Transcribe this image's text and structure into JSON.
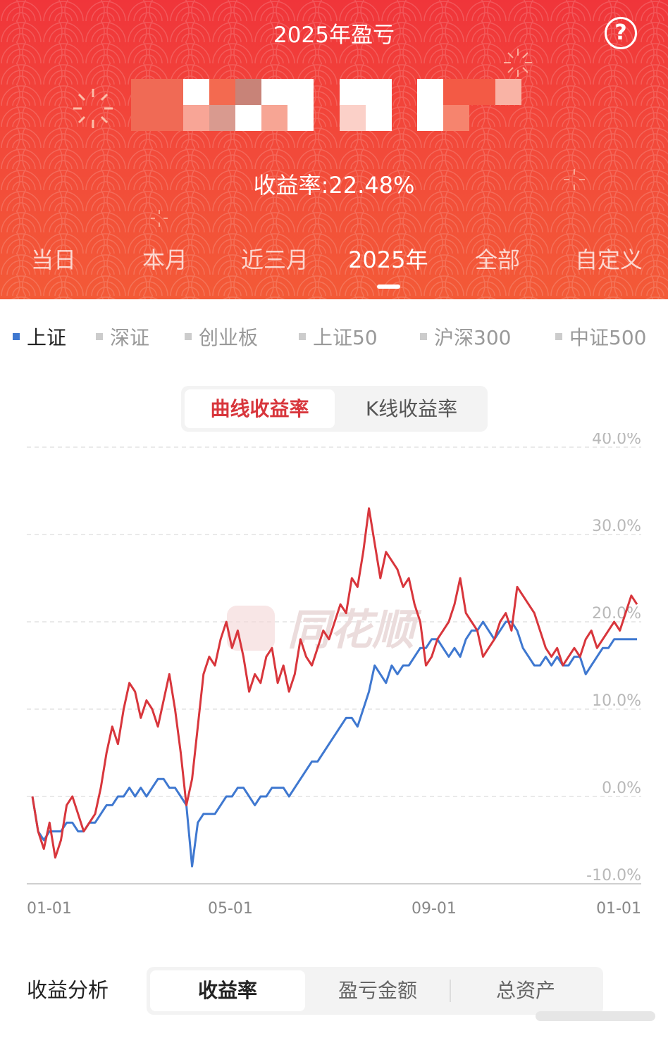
{
  "header": {
    "title": "2025年盈亏",
    "help_icon": "question-circle-icon",
    "return_label": "收益率:22.48%",
    "tabs": [
      {
        "label": "当日"
      },
      {
        "label": "本月"
      },
      {
        "label": "近三月"
      },
      {
        "label": "2025年",
        "active": true
      },
      {
        "label": "全部"
      },
      {
        "label": "自定义"
      }
    ]
  },
  "indices": [
    {
      "label": "上证",
      "active": true
    },
    {
      "label": "深证"
    },
    {
      "label": "创业板"
    },
    {
      "label": "上证50"
    },
    {
      "label": "沪深300"
    },
    {
      "label": "中证500"
    }
  ],
  "chart_toggle": {
    "curve": "曲线收益率",
    "kline": "K线收益率"
  },
  "colors": {
    "header_red": "#f0353a",
    "account_line": "#d8363c",
    "index_line": "#3f78d0",
    "active_toggle_text": "#d8363c"
  },
  "chart_data": {
    "type": "line",
    "ylim": [
      -10,
      40
    ],
    "y_ticks": [
      "40.0%",
      "30.0%",
      "20.0%",
      "10.0%",
      "0.0%",
      "-10.0%"
    ],
    "x_ticks": [
      "01-01",
      "05-01",
      "09-01",
      "01-01"
    ],
    "watermark": "同花顺",
    "series": [
      {
        "color": "#d8363c",
        "x": [
          0,
          1,
          2,
          3,
          4,
          5,
          6,
          7,
          8,
          9,
          10,
          11,
          12,
          13,
          14,
          15,
          16,
          17,
          18,
          19,
          20,
          21,
          22,
          23,
          24,
          25,
          26,
          27,
          28,
          29,
          30,
          31,
          32,
          33,
          34,
          35,
          36,
          37,
          38,
          39,
          40,
          41,
          42,
          43,
          44,
          45,
          46,
          47,
          48,
          49,
          50,
          51,
          52,
          53,
          54,
          55,
          56,
          57,
          58,
          59,
          60,
          61,
          62,
          63,
          64,
          65,
          66,
          67,
          68,
          69,
          70,
          71,
          72,
          73,
          74,
          75,
          76,
          77,
          78,
          79,
          80,
          81,
          82,
          83,
          84,
          85,
          86,
          87,
          88,
          89,
          90,
          91,
          92,
          93,
          94,
          95,
          96,
          97,
          98,
          99,
          100,
          101,
          102,
          103,
          104,
          105,
          106
        ],
        "values": [
          0,
          -4,
          -6,
          -3,
          -7,
          -5,
          -1,
          0,
          -2,
          -4,
          -3,
          -2,
          1,
          5,
          8,
          6,
          10,
          13,
          12,
          9,
          11,
          10,
          8,
          11,
          14,
          10,
          5,
          -1,
          2,
          8,
          14,
          16,
          15,
          18,
          20,
          17,
          19,
          16,
          12,
          14,
          13,
          16,
          17,
          13,
          15,
          12,
          14,
          18,
          16,
          15,
          17,
          19,
          18,
          20,
          22,
          21,
          25,
          24,
          28,
          33,
          29,
          25,
          28,
          27,
          26,
          24,
          25,
          22,
          20,
          15,
          16,
          18,
          19,
          20,
          22,
          25,
          21,
          20,
          19,
          16,
          17,
          18,
          20,
          21,
          19,
          24,
          23,
          22,
          21,
          19,
          17,
          16,
          17,
          15,
          16,
          17,
          16,
          18,
          19,
          17,
          18,
          19,
          20,
          19,
          21,
          23,
          22
        ]
      },
      {
        "color": "#3f78d0",
        "x": [
          0,
          1,
          2,
          3,
          4,
          5,
          6,
          7,
          8,
          9,
          10,
          11,
          12,
          13,
          14,
          15,
          16,
          17,
          18,
          19,
          20,
          21,
          22,
          23,
          24,
          25,
          26,
          27,
          28,
          29,
          30,
          31,
          32,
          33,
          34,
          35,
          36,
          37,
          38,
          39,
          40,
          41,
          42,
          43,
          44,
          45,
          46,
          47,
          48,
          49,
          50,
          51,
          52,
          53,
          54,
          55,
          56,
          57,
          58,
          59,
          60,
          61,
          62,
          63,
          64,
          65,
          66,
          67,
          68,
          69,
          70,
          71,
          72,
          73,
          74,
          75,
          76,
          77,
          78,
          79,
          80,
          81,
          82,
          83,
          84,
          85,
          86,
          87,
          88,
          89,
          90,
          91,
          92,
          93,
          94,
          95,
          96,
          97,
          98,
          99,
          100,
          101,
          102,
          103,
          104,
          105,
          106
        ],
        "values": [
          0,
          -4,
          -5,
          -4,
          -4,
          -4,
          -3,
          -3,
          -4,
          -4,
          -3,
          -3,
          -2,
          -1,
          -1,
          0,
          0,
          1,
          0,
          1,
          0,
          1,
          2,
          2,
          1,
          1,
          0,
          -1,
          -8,
          -3,
          -2,
          -2,
          -2,
          -1,
          0,
          0,
          1,
          1,
          0,
          -1,
          0,
          0,
          1,
          1,
          1,
          0,
          1,
          2,
          3,
          4,
          4,
          5,
          6,
          7,
          8,
          9,
          9,
          8,
          10,
          12,
          15,
          14,
          13,
          15,
          14,
          15,
          15,
          16,
          17,
          17,
          18,
          18,
          17,
          16,
          17,
          16,
          18,
          19,
          19,
          20,
          19,
          18,
          19,
          20,
          20,
          19,
          17,
          16,
          15,
          15,
          16,
          15,
          16,
          15,
          15,
          16,
          16,
          14,
          15,
          16,
          17,
          17,
          18,
          18,
          18,
          18,
          18
        ]
      }
    ]
  },
  "analysis": {
    "label": "收益分析",
    "tabs": [
      "收益率",
      "盈亏金额",
      "总资产"
    ]
  }
}
